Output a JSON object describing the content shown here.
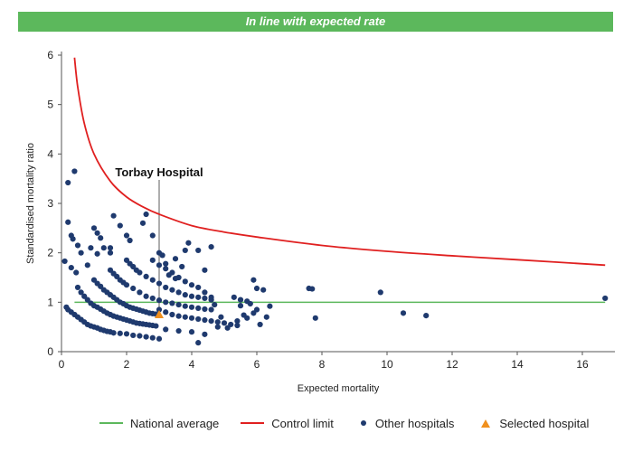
{
  "banner": {
    "text": "In line with expected rate"
  },
  "colors": {
    "banner_bg": "#5cb85c",
    "national": "#5cb85c",
    "control": "#e02020",
    "others": "#1f3a6e",
    "selected": "#f0901e"
  },
  "chart_data": {
    "type": "scatter",
    "xlabel": "Expected mortality",
    "ylabel": "Standardised mortality ratio",
    "xlim": [
      0,
      17
    ],
    "ylim": [
      0,
      6
    ],
    "xticks": [
      0,
      2,
      4,
      6,
      8,
      10,
      12,
      14,
      16
    ],
    "yticks": [
      0,
      1,
      2,
      3,
      4,
      5,
      6
    ],
    "annotation": {
      "text": "Torbay Hospital",
      "x": 3.0,
      "y": 0.75
    },
    "national_average": {
      "name": "National average",
      "value": 1.0,
      "x_range": [
        0.4,
        16.7
      ]
    },
    "control_limit": {
      "name": "Control limit",
      "points": [
        [
          0.4,
          5.95
        ],
        [
          0.5,
          5.35
        ],
        [
          0.7,
          4.62
        ],
        [
          1.0,
          4.0
        ],
        [
          1.5,
          3.45
        ],
        [
          2.0,
          3.13
        ],
        [
          2.5,
          2.93
        ],
        [
          3.0,
          2.78
        ],
        [
          4.0,
          2.55
        ],
        [
          5.0,
          2.42
        ],
        [
          6.0,
          2.32
        ],
        [
          8.0,
          2.15
        ],
        [
          10.0,
          2.03
        ],
        [
          12.0,
          1.94
        ],
        [
          14.0,
          1.86
        ],
        [
          16.7,
          1.75
        ]
      ]
    },
    "series": [
      {
        "name": "Other hospitals",
        "points": [
          [
            0.4,
            3.65
          ],
          [
            0.2,
            3.42
          ],
          [
            0.2,
            2.62
          ],
          [
            0.3,
            2.35
          ],
          [
            0.35,
            2.28
          ],
          [
            0.5,
            2.15
          ],
          [
            0.6,
            2.0
          ],
          [
            0.1,
            1.83
          ],
          [
            0.3,
            1.7
          ],
          [
            0.45,
            1.6
          ],
          [
            0.8,
            1.75
          ],
          [
            0.9,
            2.1
          ],
          [
            1.0,
            2.5
          ],
          [
            1.1,
            2.4
          ],
          [
            1.2,
            2.3
          ],
          [
            1.1,
            1.98
          ],
          [
            1.3,
            2.1
          ],
          [
            1.5,
            2.0
          ],
          [
            0.15,
            0.9
          ],
          [
            0.2,
            0.85
          ],
          [
            0.3,
            0.8
          ],
          [
            0.4,
            0.75
          ],
          [
            0.5,
            0.7
          ],
          [
            0.6,
            0.65
          ],
          [
            0.7,
            0.6
          ],
          [
            0.8,
            0.55
          ],
          [
            0.9,
            0.52
          ],
          [
            1.0,
            0.5
          ],
          [
            1.1,
            0.48
          ],
          [
            1.2,
            0.45
          ],
          [
            1.3,
            0.43
          ],
          [
            1.4,
            0.41
          ],
          [
            1.5,
            0.4
          ],
          [
            1.6,
            0.38
          ],
          [
            1.8,
            0.37
          ],
          [
            2.0,
            0.36
          ],
          [
            2.2,
            0.33
          ],
          [
            2.4,
            0.32
          ],
          [
            2.6,
            0.3
          ],
          [
            2.8,
            0.28
          ],
          [
            3.0,
            0.26
          ],
          [
            0.5,
            1.3
          ],
          [
            0.6,
            1.2
          ],
          [
            0.7,
            1.12
          ],
          [
            0.8,
            1.05
          ],
          [
            0.9,
            0.98
          ],
          [
            1.0,
            0.93
          ],
          [
            1.1,
            0.9
          ],
          [
            1.2,
            0.86
          ],
          [
            1.3,
            0.82
          ],
          [
            1.4,
            0.78
          ],
          [
            1.5,
            0.75
          ],
          [
            1.6,
            0.72
          ],
          [
            1.7,
            0.7
          ],
          [
            1.8,
            0.68
          ],
          [
            1.9,
            0.66
          ],
          [
            2.0,
            0.64
          ],
          [
            2.1,
            0.62
          ],
          [
            2.2,
            0.6
          ],
          [
            2.3,
            0.58
          ],
          [
            2.4,
            0.57
          ],
          [
            2.5,
            0.56
          ],
          [
            2.6,
            0.55
          ],
          [
            2.7,
            0.54
          ],
          [
            2.8,
            0.53
          ],
          [
            2.9,
            0.52
          ],
          [
            1.0,
            1.45
          ],
          [
            1.1,
            1.38
          ],
          [
            1.2,
            1.32
          ],
          [
            1.3,
            1.25
          ],
          [
            1.4,
            1.2
          ],
          [
            1.5,
            1.15
          ],
          [
            1.6,
            1.1
          ],
          [
            1.7,
            1.05
          ],
          [
            1.8,
            1.0
          ],
          [
            1.9,
            0.97
          ],
          [
            2.0,
            0.93
          ],
          [
            2.1,
            0.9
          ],
          [
            2.2,
            0.88
          ],
          [
            2.3,
            0.86
          ],
          [
            2.4,
            0.84
          ],
          [
            2.5,
            0.82
          ],
          [
            2.6,
            0.8
          ],
          [
            2.7,
            0.78
          ],
          [
            2.8,
            0.77
          ],
          [
            2.9,
            0.76
          ],
          [
            1.5,
            1.65
          ],
          [
            1.6,
            1.58
          ],
          [
            1.7,
            1.52
          ],
          [
            1.8,
            1.45
          ],
          [
            1.9,
            1.4
          ],
          [
            2.0,
            1.35
          ],
          [
            2.2,
            1.28
          ],
          [
            2.4,
            1.2
          ],
          [
            2.6,
            1.12
          ],
          [
            2.8,
            1.08
          ],
          [
            3.0,
            1.04
          ],
          [
            3.2,
            1.0
          ],
          [
            3.4,
            0.98
          ],
          [
            3.6,
            0.95
          ],
          [
            3.8,
            0.92
          ],
          [
            4.0,
            0.9
          ],
          [
            4.2,
            0.88
          ],
          [
            4.4,
            0.86
          ],
          [
            4.6,
            0.85
          ],
          [
            2.0,
            1.85
          ],
          [
            2.1,
            1.78
          ],
          [
            2.2,
            1.72
          ],
          [
            2.3,
            1.65
          ],
          [
            2.4,
            1.6
          ],
          [
            2.6,
            1.52
          ],
          [
            2.8,
            1.45
          ],
          [
            3.0,
            1.38
          ],
          [
            3.2,
            1.3
          ],
          [
            3.4,
            1.25
          ],
          [
            3.6,
            1.2
          ],
          [
            3.8,
            1.15
          ],
          [
            4.0,
            1.12
          ],
          [
            4.2,
            1.1
          ],
          [
            4.4,
            1.08
          ],
          [
            4.6,
            1.05
          ],
          [
            2.8,
            1.85
          ],
          [
            3.0,
            1.75
          ],
          [
            3.2,
            1.68
          ],
          [
            3.4,
            1.6
          ],
          [
            3.6,
            1.5
          ],
          [
            3.8,
            1.42
          ],
          [
            4.0,
            1.35
          ],
          [
            4.2,
            1.3
          ],
          [
            4.4,
            1.2
          ],
          [
            4.6,
            1.1
          ],
          [
            1.6,
            2.75
          ],
          [
            1.8,
            2.55
          ],
          [
            2.0,
            2.35
          ],
          [
            2.1,
            2.25
          ],
          [
            1.5,
            2.1
          ],
          [
            2.5,
            2.6
          ],
          [
            2.6,
            2.78
          ],
          [
            2.8,
            2.35
          ],
          [
            3.0,
            2.0
          ],
          [
            3.1,
            1.95
          ],
          [
            3.2,
            1.78
          ],
          [
            3.5,
            1.88
          ],
          [
            3.7,
            1.72
          ],
          [
            3.9,
            2.2
          ],
          [
            4.2,
            2.05
          ],
          [
            4.6,
            2.12
          ],
          [
            3.8,
            2.05
          ],
          [
            4.4,
            1.65
          ],
          [
            3.3,
            1.55
          ],
          [
            3.5,
            1.48
          ],
          [
            3.0,
            0.85
          ],
          [
            3.2,
            0.8
          ],
          [
            3.4,
            0.75
          ],
          [
            3.6,
            0.72
          ],
          [
            3.8,
            0.7
          ],
          [
            4.0,
            0.68
          ],
          [
            4.2,
            0.66
          ],
          [
            4.4,
            0.64
          ],
          [
            4.6,
            0.62
          ],
          [
            4.8,
            0.6
          ],
          [
            5.0,
            0.58
          ],
          [
            5.2,
            0.55
          ],
          [
            5.4,
            0.53
          ],
          [
            3.2,
            0.45
          ],
          [
            3.6,
            0.42
          ],
          [
            4.0,
            0.4
          ],
          [
            4.2,
            0.18
          ],
          [
            4.4,
            0.35
          ],
          [
            4.8,
            0.5
          ],
          [
            5.1,
            0.48
          ],
          [
            5.4,
            0.62
          ],
          [
            5.6,
            0.74
          ],
          [
            5.7,
            0.68
          ],
          [
            5.9,
            0.78
          ],
          [
            6.0,
            0.85
          ],
          [
            6.1,
            0.55
          ],
          [
            6.3,
            0.7
          ],
          [
            6.4,
            0.92
          ],
          [
            5.3,
            1.1
          ],
          [
            5.5,
            1.05
          ],
          [
            5.7,
            1.02
          ],
          [
            5.8,
            0.97
          ],
          [
            5.9,
            1.45
          ],
          [
            6.0,
            1.28
          ],
          [
            6.2,
            1.25
          ],
          [
            5.5,
            0.93
          ],
          [
            4.9,
            0.7
          ],
          [
            4.7,
            0.95
          ],
          [
            7.6,
            1.28
          ],
          [
            7.7,
            1.27
          ],
          [
            7.8,
            0.68
          ],
          [
            9.8,
            1.2
          ],
          [
            10.5,
            0.78
          ],
          [
            11.2,
            0.73
          ],
          [
            16.7,
            1.08
          ]
        ]
      },
      {
        "name": "Selected hospital",
        "points": [
          [
            3.0,
            0.75
          ]
        ]
      }
    ]
  }
}
